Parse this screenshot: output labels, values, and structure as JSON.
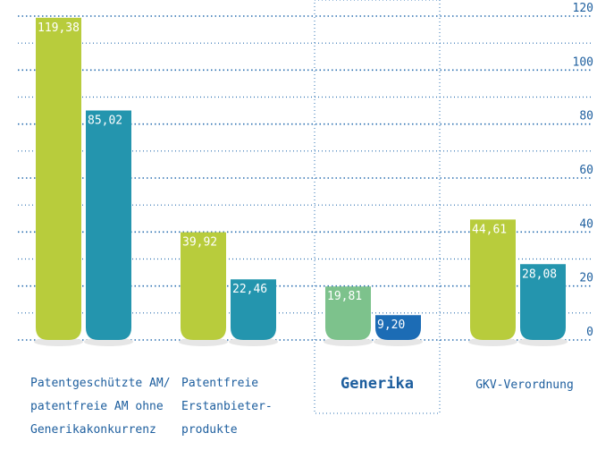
{
  "chart_data": {
    "type": "bar",
    "categories": [
      [
        "Patentgeschützte AM/",
        "patentfreie AM ohne",
        "Generikakonkurrenz"
      ],
      [
        "Patentfreie",
        "Erstanbieter-",
        "produkte"
      ],
      [
        "Generika"
      ],
      [
        "GKV-Verordnung"
      ]
    ],
    "highlight_category": 2,
    "series": [
      {
        "colors": [
          "#b8cc3c",
          "#b8cc3c",
          "#7dc28c",
          "#b8cc3c"
        ],
        "values": [
          119.38,
          39.92,
          19.81,
          44.61
        ],
        "value_labels": [
          "119,38",
          "39,92",
          "19,81",
          "44,61"
        ]
      },
      {
        "colors": [
          "#2495ae",
          "#2495ae",
          "#1c6cb5",
          "#2495ae"
        ],
        "values": [
          85.02,
          22.46,
          9.2,
          28.08
        ],
        "value_labels": [
          "85,02",
          "22,46",
          "9,20",
          "28,08"
        ]
      }
    ],
    "ylim": [
      0,
      120
    ],
    "yticks": [
      0,
      20,
      40,
      60,
      80,
      100,
      120
    ],
    "minor_yticks": [
      10,
      30,
      50,
      70,
      90,
      110
    ],
    "grid": true
  }
}
